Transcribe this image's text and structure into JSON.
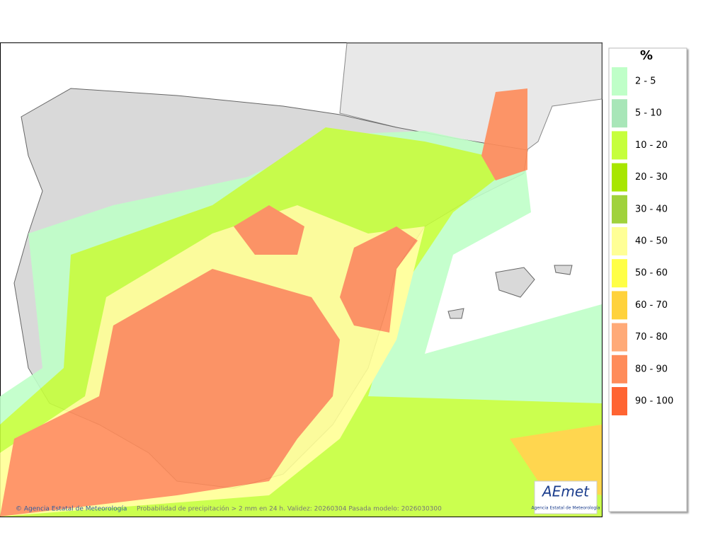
{
  "legend": {
    "title": "%",
    "items": [
      {
        "label": "2 - 5",
        "color": "#bfffc8"
      },
      {
        "label": "5 - 10",
        "color": "#a8e6b8"
      },
      {
        "label": "10 - 20",
        "color": "#c6ff3c"
      },
      {
        "label": "20 - 30",
        "color": "#a8e600"
      },
      {
        "label": "30 - 40",
        "color": "#a0d23c"
      },
      {
        "label": "40 - 50",
        "color": "#ffff96"
      },
      {
        "label": "50 - 60",
        "color": "#ffff46"
      },
      {
        "label": "60 - 70",
        "color": "#ffd23c"
      },
      {
        "label": "70 - 80",
        "color": "#ffaa78"
      },
      {
        "label": "80 - 90",
        "color": "#ff8c5a"
      },
      {
        "label": "90 - 100",
        "color": "#ff6432"
      }
    ]
  },
  "footer": {
    "credit": "© Agencia Estatal de Meteorología",
    "caption": "Probabilidad de precipitación > 2 mm en 24 h. Validez: 20260304 Pasada modelo: 2026030300"
  },
  "logo": {
    "name": "AEmet",
    "subtitle": "Agencia Estatal de Meteorología"
  }
}
